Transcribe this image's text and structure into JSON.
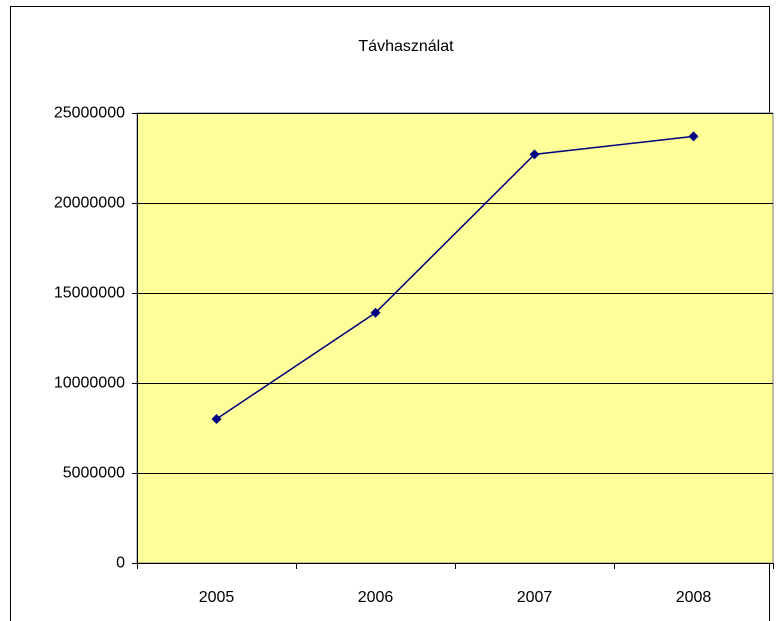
{
  "chart_data": {
    "type": "line",
    "title": "Távhasználat",
    "categories": [
      "2005",
      "2006",
      "2007",
      "2008"
    ],
    "series": [
      {
        "name": "Távhasználat",
        "color": "#000080",
        "values": [
          8000000,
          13900000,
          22700000,
          23700000
        ]
      }
    ],
    "ylim": [
      0,
      25000000
    ],
    "yticks": [
      0,
      5000000,
      10000000,
      15000000,
      20000000,
      25000000
    ],
    "grid": true,
    "plot_background": "#ffff99"
  }
}
